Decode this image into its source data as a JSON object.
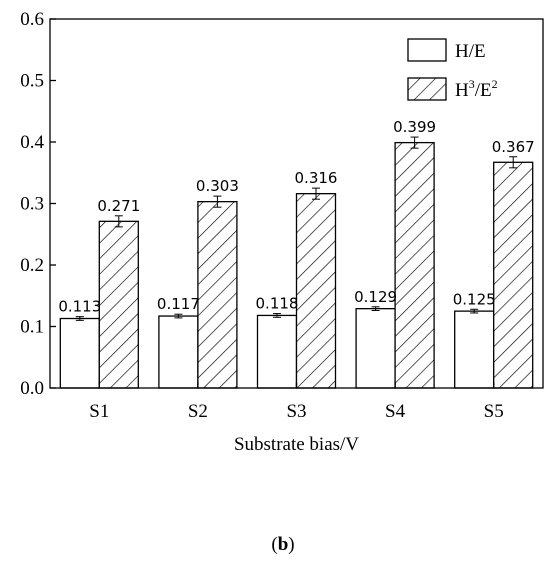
{
  "chart_data": {
    "type": "bar",
    "categories": [
      "S1",
      "S2",
      "S3",
      "S4",
      "S5"
    ],
    "series": [
      {
        "name": "H/E",
        "values": [
          0.113,
          0.117,
          0.118,
          0.129,
          0.125
        ],
        "errors": [
          0.003,
          0.003,
          0.003,
          0.003,
          0.003
        ],
        "labels": [
          "0.113",
          "0.117",
          "0.118",
          "0.129",
          "0.125"
        ],
        "pattern": "solid-white"
      },
      {
        "name": "H³/E²",
        "name_base": "H",
        "name_sup1": "3",
        "name_mid": "/E",
        "name_sup2": "2",
        "values": [
          0.271,
          0.303,
          0.316,
          0.399,
          0.367
        ],
        "errors": [
          0.009,
          0.009,
          0.009,
          0.009,
          0.009
        ],
        "labels": [
          "0.271",
          "0.303",
          "0.316",
          "0.399",
          "0.367"
        ],
        "pattern": "diagonal-hatch"
      }
    ],
    "xlabel": "Substrate bias/V",
    "ylabel": "",
    "ylim": [
      0,
      0.6
    ],
    "yticks": [
      "0.0",
      "0.1",
      "0.2",
      "0.3",
      "0.4",
      "0.5",
      "0.6"
    ],
    "legend_position": "top-right",
    "grid": false
  },
  "caption": {
    "open": "(",
    "letter": "b",
    "close": ")"
  }
}
